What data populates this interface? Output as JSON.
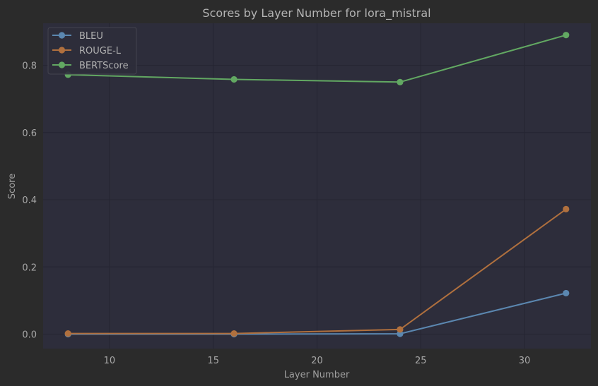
{
  "chart_data": {
    "type": "line",
    "title": "Scores by Layer Number for lora_mistral",
    "xlabel": "Layer Number",
    "ylabel": "Score",
    "x": [
      8,
      16,
      24,
      32
    ],
    "xlim": [
      6.8,
      33.2
    ],
    "ylim": [
      -0.043,
      0.925
    ],
    "xticks": [
      10,
      15,
      20,
      25,
      30
    ],
    "yticks": [
      0.0,
      0.2,
      0.4,
      0.6,
      0.8
    ],
    "ytick_labels": [
      "0.0",
      "0.2",
      "0.4",
      "0.6",
      "0.8"
    ],
    "grid": true,
    "legend_position": "top-left",
    "series": [
      {
        "name": "BLEU",
        "color": "#5b87b0",
        "values": [
          0.0,
          0.0,
          0.001,
          0.122
        ]
      },
      {
        "name": "ROUGE-L",
        "color": "#b0703e",
        "values": [
          0.002,
          0.002,
          0.014,
          0.372
        ]
      },
      {
        "name": "BERTScore",
        "color": "#62a862",
        "values": [
          0.772,
          0.758,
          0.75,
          0.89
        ]
      }
    ]
  },
  "colors": {
    "background": "#2b2b2b",
    "plot_background": "#2d2d3b"
  }
}
